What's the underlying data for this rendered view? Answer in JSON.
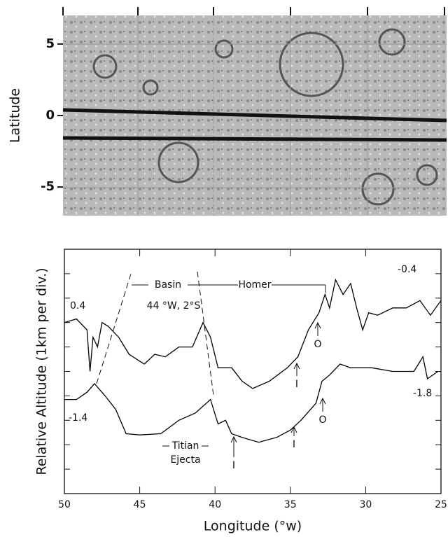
{
  "chart_data": [
    {
      "type": "image",
      "ylabel": "Latitude",
      "ylim": [
        -7,
        7
      ],
      "yticks": [
        5,
        0,
        -5
      ]
    },
    {
      "type": "line",
      "xlabel": "Longitude (°w)",
      "ylabel": "Relative Altitude (1km per div.)",
      "xlim": [
        50,
        25
      ],
      "xticks": [
        50,
        45,
        40,
        35,
        30,
        25
      ],
      "ylim": [
        0,
        10
      ],
      "yticks": [
        0,
        1,
        2,
        3,
        4,
        5,
        6,
        7,
        8,
        9,
        10
      ],
      "series": [
        {
          "color": "#000000",
          "x": [
            50.0,
            49.2,
            48.5,
            48.3,
            48.1,
            47.8,
            47.5,
            47.1,
            46.4,
            45.7,
            44.7,
            44.0,
            43.3,
            42.4,
            41.5,
            40.8,
            40.3,
            39.8,
            38.9,
            38.2,
            37.5,
            36.4,
            35.2,
            34.5,
            33.8,
            33.1,
            32.7,
            32.4,
            32.0,
            31.5,
            31.0,
            30.6,
            30.2,
            29.8,
            29.2,
            28.2,
            27.3,
            26.4,
            25.7,
            25.0
          ],
          "values": [
            7.0,
            7.15,
            6.7,
            5.0,
            6.4,
            6.0,
            7.0,
            6.85,
            6.4,
            5.7,
            5.3,
            5.7,
            5.6,
            6.0,
            6.0,
            7.0,
            6.4,
            5.15,
            5.15,
            4.6,
            4.3,
            4.6,
            5.15,
            5.6,
            6.7,
            7.4,
            8.15,
            7.6,
            8.75,
            8.15,
            8.6,
            7.6,
            6.7,
            7.4,
            7.3,
            7.6,
            7.6,
            7.9,
            7.3,
            7.9
          ]
        },
        {
          "color": "#000000",
          "x": [
            50.0,
            49.2,
            48.5,
            48.0,
            47.3,
            46.6,
            45.9,
            45.0,
            43.6,
            42.4,
            41.3,
            40.3,
            39.8,
            39.3,
            38.9,
            38.2,
            37.1,
            35.9,
            35.0,
            34.3,
            33.3,
            32.9,
            32.4,
            31.7,
            31.0,
            29.6,
            28.2,
            26.8,
            26.2,
            25.9,
            25.2
          ],
          "values": [
            3.85,
            3.85,
            4.15,
            4.5,
            4.0,
            3.45,
            2.45,
            2.4,
            2.45,
            3.0,
            3.3,
            3.85,
            2.85,
            3.0,
            2.45,
            2.3,
            2.1,
            2.3,
            2.6,
            3.0,
            3.7,
            4.6,
            4.85,
            5.3,
            5.15,
            5.15,
            5.0,
            5.0,
            5.6,
            4.7,
            5.0
          ]
        }
      ],
      "annotations": [
        "0.4",
        "-0.4",
        "-1.4",
        "-1.8",
        "Basin",
        "44 °W, 2°S",
        "Homer",
        "Titian",
        "Ejecta",
        "I",
        "I",
        "I",
        "O",
        "O"
      ]
    }
  ]
}
